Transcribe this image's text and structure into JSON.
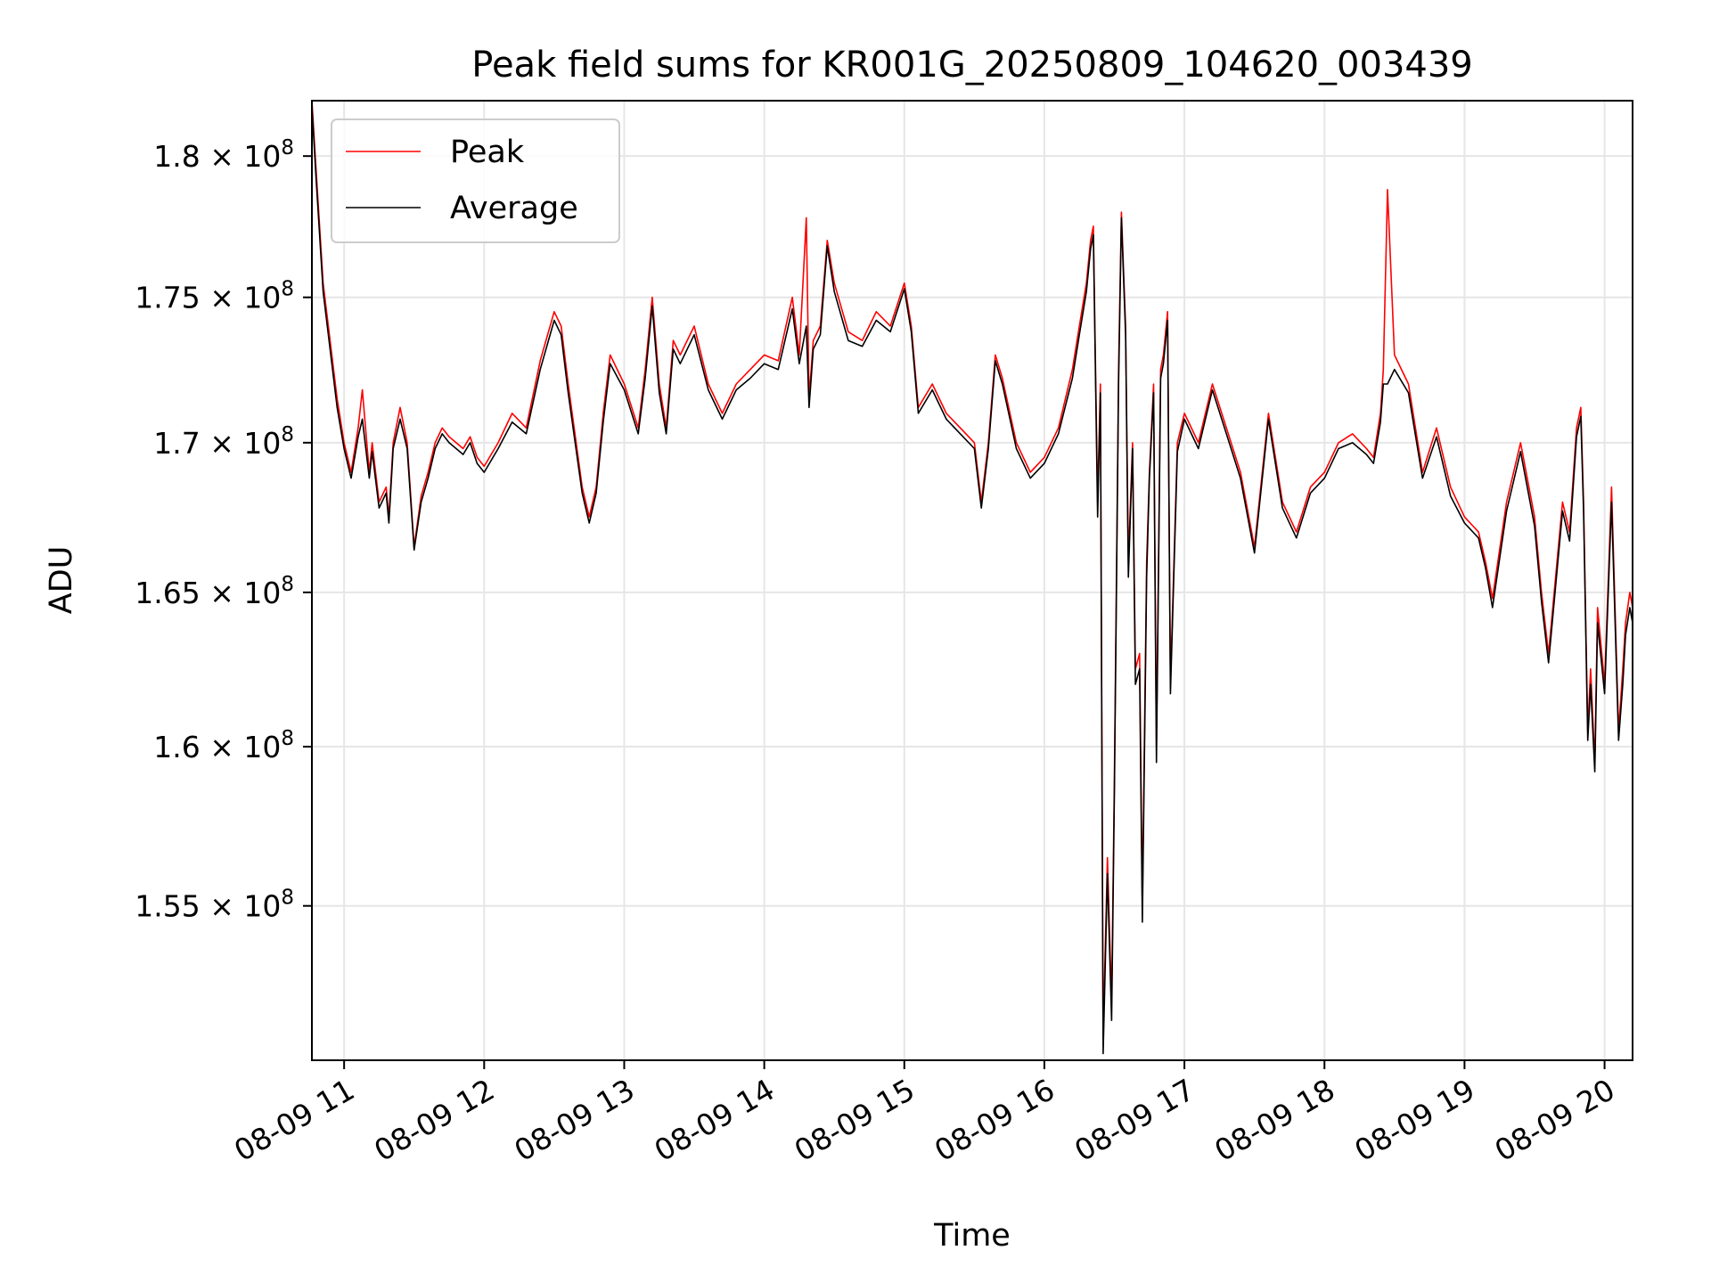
{
  "chart_data": {
    "type": "line",
    "title": "Peak field sums for KR001G_20250809_104620_003439",
    "xlabel": "Time",
    "ylabel": "ADU",
    "x_tick_labels": [
      "08-09 11",
      "08-09 12",
      "08-09 13",
      "08-09 14",
      "08-09 15",
      "08-09 16",
      "08-09 17",
      "08-09 18",
      "08-09 19",
      "08-09 20"
    ],
    "x_tick_hours": [
      11,
      12,
      13,
      14,
      15,
      16,
      17,
      18,
      19,
      20
    ],
    "xlim_hours": [
      10.77,
      20.2
    ],
    "y_scale": "log",
    "y_ticks": [
      155000000.0,
      160000000.0,
      165000000.0,
      170000000.0,
      175000000.0,
      180000000.0
    ],
    "y_tick_mantissas": [
      "1.55",
      "1.6",
      "1.65",
      "1.7",
      "1.75",
      "1.8"
    ],
    "y_tick_exponent": "8",
    "ylim": [
      150300000.0,
      182000000.0
    ],
    "grid": true,
    "legend": {
      "placement": "upper-left",
      "entries": [
        "Peak",
        "Average"
      ]
    },
    "series": [
      {
        "name": "Peak",
        "color": "#ff0000",
        "x_hours": [
          10.77,
          10.8,
          10.85,
          10.9,
          10.95,
          11.0,
          11.05,
          11.1,
          11.13,
          11.18,
          11.2,
          11.25,
          11.3,
          11.32,
          11.35,
          11.4,
          11.45,
          11.5,
          11.55,
          11.6,
          11.65,
          11.7,
          11.75,
          11.8,
          11.85,
          11.9,
          11.95,
          12.0,
          12.1,
          12.2,
          12.3,
          12.4,
          12.5,
          12.55,
          12.6,
          12.7,
          12.75,
          12.8,
          12.85,
          12.9,
          13.0,
          13.1,
          13.15,
          13.2,
          13.25,
          13.3,
          13.35,
          13.4,
          13.5,
          13.6,
          13.7,
          13.8,
          13.9,
          14.0,
          14.1,
          14.2,
          14.25,
          14.3,
          14.32,
          14.35,
          14.4,
          14.45,
          14.5,
          14.6,
          14.7,
          14.8,
          14.9,
          15.0,
          15.05,
          15.1,
          15.2,
          15.3,
          15.4,
          15.5,
          15.55,
          15.6,
          15.65,
          15.7,
          15.8,
          15.9,
          16.0,
          16.1,
          16.2,
          16.25,
          16.3,
          16.33,
          16.35,
          16.38,
          16.4,
          16.42,
          16.45,
          16.48,
          16.5,
          16.53,
          16.55,
          16.58,
          16.6,
          16.63,
          16.65,
          16.68,
          16.7,
          16.73,
          16.75,
          16.78,
          16.8,
          16.83,
          16.85,
          16.88,
          16.9,
          16.95,
          17.0,
          17.1,
          17.2,
          17.3,
          17.4,
          17.5,
          17.6,
          17.7,
          17.8,
          17.9,
          18.0,
          18.1,
          18.2,
          18.3,
          18.35,
          18.4,
          18.42,
          18.45,
          18.5,
          18.6,
          18.7,
          18.8,
          18.9,
          19.0,
          19.1,
          19.15,
          19.2,
          19.3,
          19.4,
          19.5,
          19.55,
          19.6,
          19.7,
          19.75,
          19.8,
          19.83,
          19.85,
          19.88,
          19.9,
          19.93,
          19.95,
          20.0,
          20.05,
          20.1,
          20.13,
          20.15,
          20.18,
          20.2
        ],
        "values": [
          182000000.0,
          179500000.0,
          175500000.0,
          173500000.0,
          171500000.0,
          170000000.0,
          169000000.0,
          170500000.0,
          171800000.0,
          169000000.0,
          170000000.0,
          168000000.0,
          168500000.0,
          167500000.0,
          170000000.0,
          171200000.0,
          170000000.0,
          166500000.0,
          168200000.0,
          169000000.0,
          170000000.0,
          170500000.0,
          170200000.0,
          170000000.0,
          169800000.0,
          170200000.0,
          169500000.0,
          169200000.0,
          170000000.0,
          171000000.0,
          170500000.0,
          172800000.0,
          174500000.0,
          174000000.0,
          172000000.0,
          168500000.0,
          167500000.0,
          168500000.0,
          171000000.0,
          173000000.0,
          172000000.0,
          170500000.0,
          172500000.0,
          175000000.0,
          172000000.0,
          170500000.0,
          173500000.0,
          173000000.0,
          174000000.0,
          172000000.0,
          171000000.0,
          172000000.0,
          172500000.0,
          173000000.0,
          172800000.0,
          175000000.0,
          173000000.0,
          177800000.0,
          171500000.0,
          173500000.0,
          174000000.0,
          177000000.0,
          175500000.0,
          173800000.0,
          173500000.0,
          174500000.0,
          174000000.0,
          175500000.0,
          174000000.0,
          171200000.0,
          172000000.0,
          171000000.0,
          170500000.0,
          170000000.0,
          168000000.0,
          170000000.0,
          173000000.0,
          172200000.0,
          170000000.0,
          169000000.0,
          169500000.0,
          170500000.0,
          172500000.0,
          174000000.0,
          175500000.0,
          177000000.0,
          177500000.0,
          168000000.0,
          172000000.0,
          151000000.0,
          156500000.0,
          152000000.0,
          159000000.0,
          172500000.0,
          178000000.0,
          174000000.0,
          166000000.0,
          170000000.0,
          162500000.0,
          163000000.0,
          155000000.0,
          166000000.0,
          169000000.0,
          172000000.0,
          160000000.0,
          172500000.0,
          173000000.0,
          174500000.0,
          162000000.0,
          170000000.0,
          171000000.0,
          170000000.0,
          172000000.0,
          170500000.0,
          169000000.0,
          166500000.0,
          171000000.0,
          168000000.0,
          167000000.0,
          168500000.0,
          169000000.0,
          170000000.0,
          170300000.0,
          169800000.0,
          169500000.0,
          171000000.0,
          172500000.0,
          178800000.0,
          173000000.0,
          172000000.0,
          169000000.0,
          170500000.0,
          168500000.0,
          167500000.0,
          167000000.0,
          166000000.0,
          164800000.0,
          168000000.0,
          170000000.0,
          167500000.0,
          165000000.0,
          163000000.0,
          168000000.0,
          167000000.0,
          170500000.0,
          171200000.0,
          168000000.0,
          160500000.0,
          162500000.0,
          159500000.0,
          164500000.0,
          162000000.0,
          168500000.0,
          160500000.0,
          162500000.0,
          164000000.0,
          165000000.0,
          164500000.0
        ]
      },
      {
        "name": "Average",
        "color": "#000000",
        "x_hours": [
          10.77,
          10.8,
          10.85,
          10.9,
          10.95,
          11.0,
          11.05,
          11.1,
          11.13,
          11.18,
          11.2,
          11.25,
          11.3,
          11.32,
          11.35,
          11.4,
          11.45,
          11.5,
          11.55,
          11.6,
          11.65,
          11.7,
          11.75,
          11.8,
          11.85,
          11.9,
          11.95,
          12.0,
          12.1,
          12.2,
          12.3,
          12.4,
          12.5,
          12.55,
          12.6,
          12.7,
          12.75,
          12.8,
          12.85,
          12.9,
          13.0,
          13.1,
          13.15,
          13.2,
          13.25,
          13.3,
          13.35,
          13.4,
          13.5,
          13.6,
          13.7,
          13.8,
          13.9,
          14.0,
          14.1,
          14.2,
          14.25,
          14.3,
          14.32,
          14.35,
          14.4,
          14.45,
          14.5,
          14.6,
          14.7,
          14.8,
          14.9,
          15.0,
          15.05,
          15.1,
          15.2,
          15.3,
          15.4,
          15.5,
          15.55,
          15.6,
          15.65,
          15.7,
          15.8,
          15.9,
          16.0,
          16.1,
          16.2,
          16.25,
          16.3,
          16.33,
          16.35,
          16.38,
          16.4,
          16.42,
          16.45,
          16.48,
          16.5,
          16.53,
          16.55,
          16.58,
          16.6,
          16.63,
          16.65,
          16.68,
          16.7,
          16.73,
          16.75,
          16.78,
          16.8,
          16.83,
          16.85,
          16.88,
          16.9,
          16.95,
          17.0,
          17.1,
          17.2,
          17.3,
          17.4,
          17.5,
          17.6,
          17.7,
          17.8,
          17.9,
          18.0,
          18.1,
          18.2,
          18.3,
          18.35,
          18.4,
          18.42,
          18.45,
          18.5,
          18.6,
          18.7,
          18.8,
          18.9,
          19.0,
          19.1,
          19.15,
          19.2,
          19.3,
          19.4,
          19.5,
          19.55,
          19.6,
          19.7,
          19.75,
          19.8,
          19.83,
          19.85,
          19.88,
          19.9,
          19.93,
          19.95,
          20.0,
          20.05,
          20.1,
          20.13,
          20.15,
          20.18,
          20.2
        ],
        "values": [
          181800000.0,
          179200000.0,
          175200000.0,
          173200000.0,
          171200000.0,
          169800000.0,
          168800000.0,
          170200000.0,
          170800000.0,
          168800000.0,
          169700000.0,
          167800000.0,
          168300000.0,
          167300000.0,
          169800000.0,
          170800000.0,
          169800000.0,
          166400000.0,
          168000000.0,
          168800000.0,
          169800000.0,
          170300000.0,
          170000000.0,
          169800000.0,
          169600000.0,
          170000000.0,
          169300000.0,
          169000000.0,
          169800000.0,
          170700000.0,
          170300000.0,
          172500000.0,
          174200000.0,
          173700000.0,
          171700000.0,
          168300000.0,
          167300000.0,
          168300000.0,
          170700000.0,
          172700000.0,
          171800000.0,
          170300000.0,
          172200000.0,
          174700000.0,
          171700000.0,
          170300000.0,
          173200000.0,
          172700000.0,
          173700000.0,
          171800000.0,
          170800000.0,
          171800000.0,
          172200000.0,
          172700000.0,
          172500000.0,
          174600000.0,
          172700000.0,
          174000000.0,
          171200000.0,
          173200000.0,
          173700000.0,
          176800000.0,
          175200000.0,
          173500000.0,
          173300000.0,
          174200000.0,
          173800000.0,
          175300000.0,
          173800000.0,
          171000000.0,
          171800000.0,
          170800000.0,
          170300000.0,
          169800000.0,
          167800000.0,
          169800000.0,
          172800000.0,
          172000000.0,
          169800000.0,
          168800000.0,
          169300000.0,
          170300000.0,
          172200000.0,
          173700000.0,
          175200000.0,
          176700000.0,
          177200000.0,
          167500000.0,
          171700000.0,
          150500000.0,
          156000000.0,
          151500000.0,
          158500000.0,
          172000000.0,
          177800000.0,
          173700000.0,
          165500000.0,
          169800000.0,
          162000000.0,
          162500000.0,
          154500000.0,
          165500000.0,
          168800000.0,
          171700000.0,
          159500000.0,
          172200000.0,
          172700000.0,
          174200000.0,
          161700000.0,
          169700000.0,
          170800000.0,
          169800000.0,
          171800000.0,
          170300000.0,
          168800000.0,
          166300000.0,
          170800000.0,
          167800000.0,
          166800000.0,
          168300000.0,
          168800000.0,
          169800000.0,
          170000000.0,
          169600000.0,
          169300000.0,
          170700000.0,
          172000000.0,
          172000000.0,
          172500000.0,
          171700000.0,
          168800000.0,
          170200000.0,
          168200000.0,
          167300000.0,
          166800000.0,
          165800000.0,
          164500000.0,
          167700000.0,
          169700000.0,
          167200000.0,
          164700000.0,
          162700000.0,
          167700000.0,
          166700000.0,
          170200000.0,
          170900000.0,
          167700000.0,
          160200000.0,
          162000000.0,
          159200000.0,
          164000000.0,
          161700000.0,
          168000000.0,
          160200000.0,
          162000000.0,
          163600000.0,
          164500000.0,
          164000000.0
        ]
      }
    ]
  }
}
